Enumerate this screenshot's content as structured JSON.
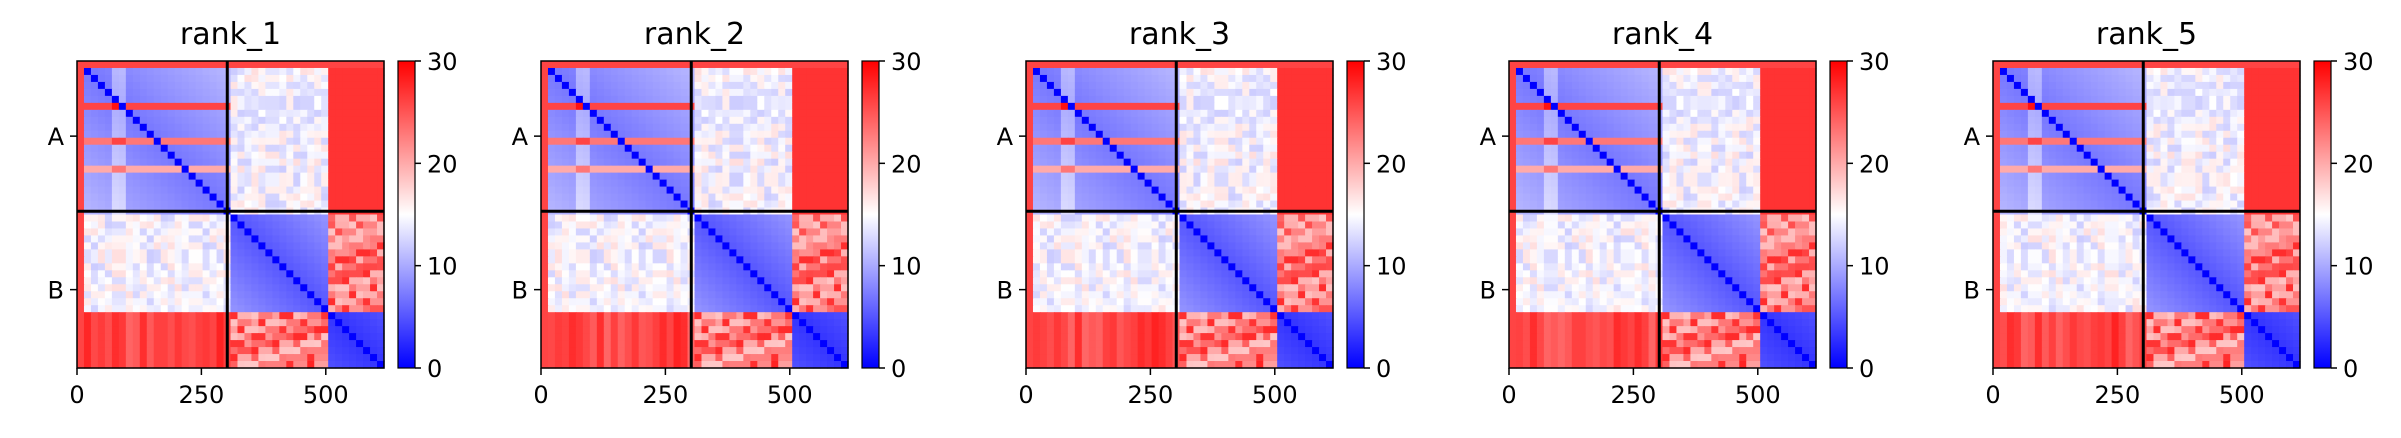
{
  "chart_data": [
    {
      "type": "heatmap",
      "title": "rank_1",
      "xticks": [
        0,
        250,
        500
      ],
      "xlim": [
        0,
        617
      ],
      "chains": [
        "A",
        "B"
      ],
      "chain_boundary": 302,
      "colorbar": {
        "ticks": [
          0,
          10,
          20,
          30
        ],
        "range": [
          0,
          30
        ],
        "colormap": "bwr",
        "colors": [
          "#0000ff",
          "#ffffff",
          "#ff0000"
        ]
      },
      "red_bands_A": [
        0.28,
        0.52,
        0.72
      ],
      "variant": 0
    },
    {
      "type": "heatmap",
      "title": "rank_2",
      "xticks": [
        0,
        250,
        500
      ],
      "xlim": [
        0,
        617
      ],
      "chains": [
        "A",
        "B"
      ],
      "chain_boundary": 302,
      "colorbar": {
        "ticks": [
          0,
          10,
          20,
          30
        ],
        "range": [
          0,
          30
        ],
        "colormap": "bwr",
        "colors": [
          "#0000ff",
          "#ffffff",
          "#ff0000"
        ]
      },
      "red_bands_A": [
        0.3,
        0.55,
        0.7
      ],
      "variant": 1
    },
    {
      "type": "heatmap",
      "title": "rank_3",
      "xticks": [
        0,
        250,
        500
      ],
      "xlim": [
        0,
        617
      ],
      "chains": [
        "A",
        "B"
      ],
      "chain_boundary": 302,
      "colorbar": {
        "ticks": [
          0,
          10,
          20,
          30
        ],
        "range": [
          0,
          30
        ],
        "colormap": "bwr",
        "colors": [
          "#0000ff",
          "#ffffff",
          "#ff0000"
        ]
      },
      "red_bands_A": [
        0.3,
        0.55,
        0.7
      ],
      "variant": 2
    },
    {
      "type": "heatmap",
      "title": "rank_4",
      "xticks": [
        0,
        250,
        500
      ],
      "xlim": [
        0,
        617
      ],
      "chains": [
        "A",
        "B"
      ],
      "chain_boundary": 302,
      "colorbar": {
        "ticks": [
          0,
          10,
          20,
          30
        ],
        "range": [
          0,
          30
        ],
        "colormap": "bwr",
        "colors": [
          "#0000ff",
          "#ffffff",
          "#ff0000"
        ]
      },
      "red_bands_A": [
        0.3,
        0.55,
        0.72
      ],
      "variant": 3
    },
    {
      "type": "heatmap",
      "title": "rank_5",
      "xticks": [
        0,
        250,
        500
      ],
      "xlim": [
        0,
        617
      ],
      "chains": [
        "A",
        "B"
      ],
      "chain_boundary": 302,
      "colorbar": {
        "ticks": [
          0,
          10,
          20,
          30
        ],
        "range": [
          0,
          30
        ],
        "colormap": "bwr",
        "colors": [
          "#0000ff",
          "#ffffff",
          "#ff0000"
        ]
      },
      "red_bands_A": [
        0.3,
        0.55,
        0.72
      ],
      "variant": 4
    }
  ]
}
